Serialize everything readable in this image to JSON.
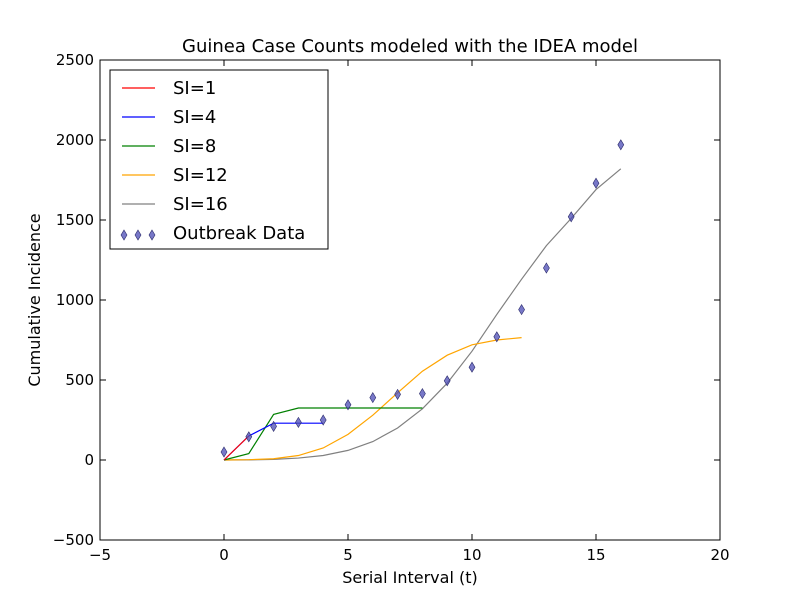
{
  "chart_data": {
    "type": "line",
    "title": "Guinea Case Counts modeled with the IDEA model",
    "xlabel": "Serial Interval (t)",
    "ylabel": "Cumulative Incidence",
    "xlim": [
      -5,
      20
    ],
    "ylim": [
      -500,
      2500
    ],
    "xticks": [
      -5,
      0,
      5,
      10,
      15,
      20
    ],
    "yticks": [
      -500,
      0,
      500,
      1000,
      1500,
      2000,
      2500
    ],
    "xtick_labels": [
      "−5",
      "0",
      "5",
      "10",
      "15",
      "20"
    ],
    "ytick_labels": [
      "−500",
      "0",
      "500",
      "1000",
      "1500",
      "2000",
      "2500"
    ],
    "grid": false,
    "legend_position": "top-left",
    "series": [
      {
        "name": "SI=1",
        "kind": "line",
        "color": "#ff0000",
        "x": [
          0,
          1
        ],
        "y": [
          0,
          150
        ]
      },
      {
        "name": "SI=4",
        "kind": "line",
        "color": "#0000ff",
        "x": [
          0,
          1,
          2,
          3,
          4
        ],
        "y": [
          0,
          150,
          230,
          230,
          230
        ]
      },
      {
        "name": "SI=8",
        "kind": "line",
        "color": "#008000",
        "x": [
          0,
          1,
          2,
          3,
          4,
          5,
          6,
          7,
          8
        ],
        "y": [
          0,
          40,
          285,
          325,
          325,
          325,
          325,
          325,
          325
        ]
      },
      {
        "name": "SI=12",
        "kind": "line",
        "color": "#ffa500",
        "x": [
          0,
          1,
          2,
          3,
          4,
          5,
          6,
          7,
          8,
          9,
          10,
          11,
          12
        ],
        "y": [
          0,
          2,
          8,
          28,
          75,
          160,
          280,
          420,
          555,
          655,
          720,
          750,
          765
        ]
      },
      {
        "name": "SI=16",
        "kind": "line",
        "color": "#808080",
        "x": [
          0,
          1,
          2,
          3,
          4,
          5,
          6,
          7,
          8,
          9,
          10,
          11,
          12,
          13,
          14,
          15,
          16
        ],
        "y": [
          0,
          1,
          4,
          12,
          28,
          60,
          115,
          200,
          320,
          480,
          680,
          910,
          1130,
          1340,
          1510,
          1690,
          1820
        ]
      },
      {
        "name": "Outbreak Data",
        "kind": "scatter",
        "color": "#4b4bb5",
        "x": [
          0,
          1,
          2,
          3,
          4,
          5,
          6,
          7,
          8,
          9,
          10,
          11,
          12,
          13,
          14,
          15,
          16
        ],
        "y": [
          50,
          145,
          210,
          235,
          250,
          345,
          390,
          410,
          415,
          495,
          580,
          770,
          940,
          1200,
          1520,
          1730,
          1970
        ]
      }
    ]
  }
}
